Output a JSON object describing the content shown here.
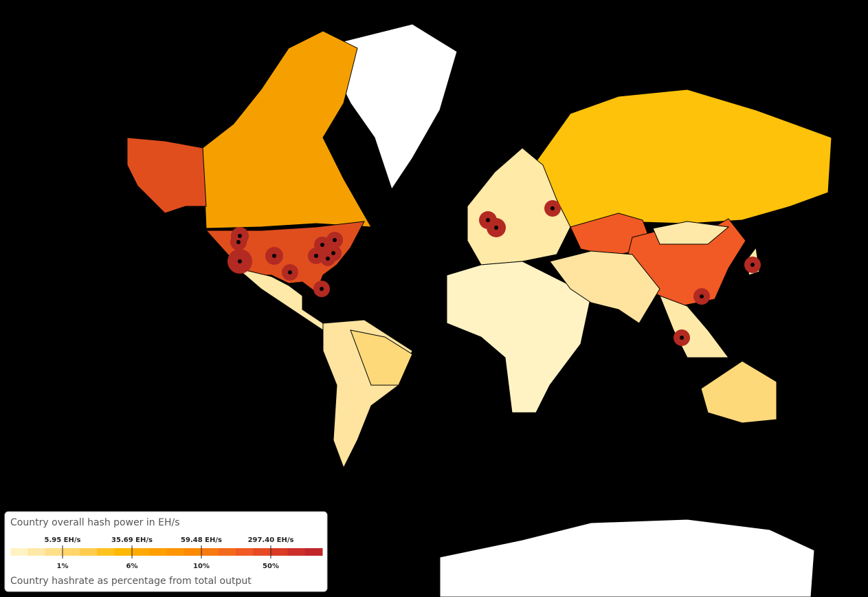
{
  "legend": {
    "title": "Country overall hash power in EH/s",
    "ticks": [
      {
        "top": "5.95 EH/s",
        "bottom": "1%"
      },
      {
        "top": "35.69 EH/s",
        "bottom": "6%"
      },
      {
        "top": "59.48 EH/s",
        "bottom": "10%"
      },
      {
        "top": "297.40 EH/s",
        "bottom": "50%"
      }
    ],
    "colors": [
      "#fff3c4",
      "#ffe9a8",
      "#ffdf8a",
      "#ffd66b",
      "#ffcc4d",
      "#ffc21f",
      "#ffb800",
      "#ffaa00",
      "#ff9f00",
      "#ff9500",
      "#ff8a00",
      "#f87a10",
      "#f46a1c",
      "#f05a24",
      "#e64b24",
      "#d93b26",
      "#cc2f2a",
      "#c0262a"
    ],
    "caption": "Country hashrate as percentage from total output"
  }
}
